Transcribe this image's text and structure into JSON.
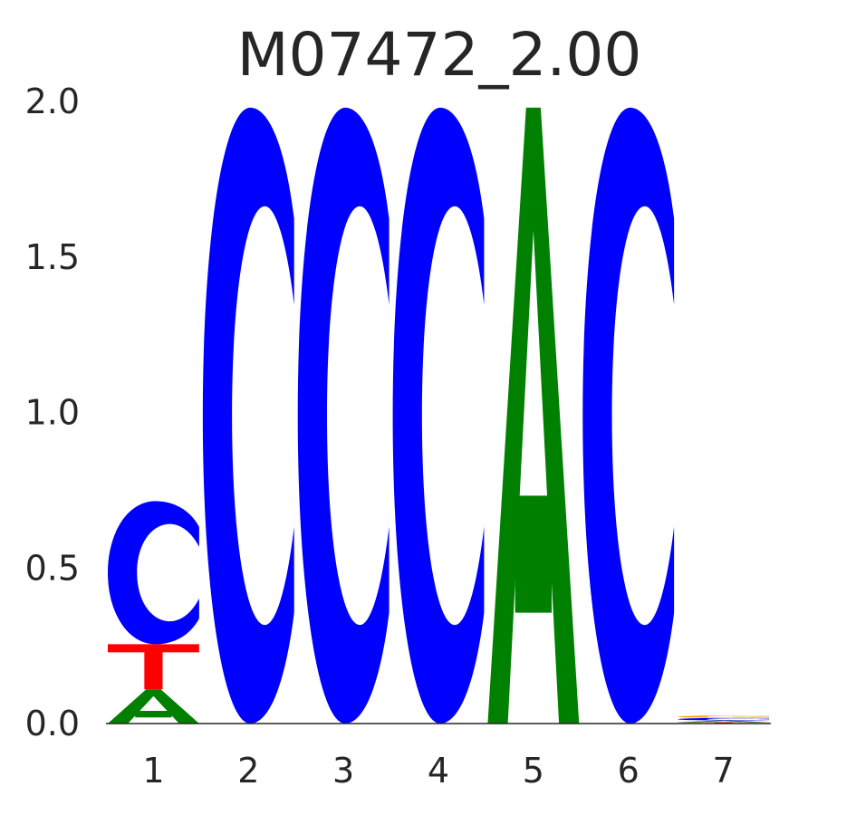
{
  "chart_data": {
    "type": "sequence-logo",
    "title": "M07472_2.00",
    "xlabel": "",
    "ylabel": "",
    "ylim": [
      0,
      2
    ],
    "y_ticks": [
      "0.0",
      "0.5",
      "1.0",
      "1.5",
      "2.0"
    ],
    "x_ticks": [
      "1",
      "2",
      "3",
      "4",
      "5",
      "6",
      "7"
    ],
    "grid": false,
    "colors": {
      "A": "#008000",
      "C": "#0000ff",
      "G": "#ffa500",
      "T": "#ff0000"
    },
    "positions": [
      {
        "position": "1",
        "letters": [
          {
            "base": "A",
            "height": 0.11
          },
          {
            "base": "T",
            "height": 0.145
          },
          {
            "base": "C",
            "height": 0.46
          }
        ]
      },
      {
        "position": "2",
        "letters": [
          {
            "base": "C",
            "height": 1.98
          }
        ]
      },
      {
        "position": "3",
        "letters": [
          {
            "base": "C",
            "height": 1.98
          }
        ]
      },
      {
        "position": "4",
        "letters": [
          {
            "base": "C",
            "height": 1.98
          }
        ]
      },
      {
        "position": "5",
        "letters": [
          {
            "base": "A",
            "height": 1.98
          }
        ]
      },
      {
        "position": "6",
        "letters": [
          {
            "base": "C",
            "height": 1.98
          }
        ]
      },
      {
        "position": "7",
        "letters": [
          {
            "base": "T",
            "height": 0.004
          },
          {
            "base": "A",
            "height": 0.006
          },
          {
            "base": "C",
            "height": 0.008
          },
          {
            "base": "G",
            "height": 0.008
          }
        ]
      }
    ]
  }
}
